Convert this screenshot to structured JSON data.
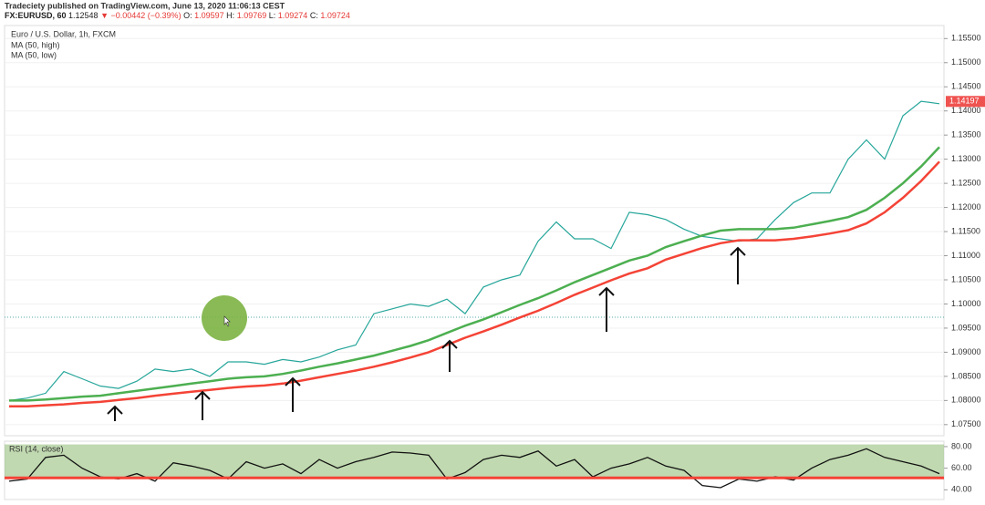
{
  "header": {
    "publisher": "Tradeciety published on TradingView.com, June 13, 2020 11:06:13 CEST",
    "symbol": [
      "FX:EURUSD, 60",
      "1.12548",
      "▼ −0.00442 (−0.39%)",
      "O:",
      "1.09597",
      "H:",
      "1.09769",
      "L:",
      "1.09274",
      "C:",
      "1.09724"
    ]
  },
  "legend": [
    "Euro / U.S. Dollar, 1h, FXCM",
    "MA (50, high)",
    "MA (50, low)"
  ],
  "chart_data": [
    {
      "type": "line",
      "ylim": [
        1.0727,
        1.1577
      ],
      "yticks": [
        {
          "value": 1.155,
          "label": "1.15500"
        },
        {
          "value": 1.15,
          "label": "1.15000"
        },
        {
          "value": 1.145,
          "label": "1.14500"
        },
        {
          "value": 1.14,
          "label": "1.14000"
        },
        {
          "value": 1.135,
          "label": "1.13500"
        },
        {
          "value": 1.13,
          "label": "1.13000"
        },
        {
          "value": 1.125,
          "label": "1.12500"
        },
        {
          "value": 1.12,
          "label": "1.12000"
        },
        {
          "value": 1.115,
          "label": "1.11500"
        },
        {
          "value": 1.11,
          "label": "1.11000"
        },
        {
          "value": 1.105,
          "label": "1.10500"
        },
        {
          "value": 1.1,
          "label": "1.10000"
        },
        {
          "value": 1.095,
          "label": "1.09500"
        },
        {
          "value": 1.09,
          "label": "1.09000"
        },
        {
          "value": 1.085,
          "label": "1.08500"
        },
        {
          "value": 1.08,
          "label": "1.08000"
        },
        {
          "value": 1.075,
          "label": "1.07500"
        }
      ],
      "last_price": 1.14197,
      "series": [
        {
          "color": "#26a69a",
          "values": [
            1.08,
            1.0805,
            1.0815,
            1.086,
            1.0845,
            1.083,
            1.0825,
            1.084,
            1.0865,
            1.086,
            1.0865,
            1.085,
            1.088,
            1.088,
            1.0875,
            1.0885,
            1.088,
            1.089,
            1.0905,
            1.0915,
            1.098,
            1.099,
            1.1,
            1.0995,
            1.101,
            1.098,
            1.1035,
            1.105,
            1.106,
            1.113,
            1.117,
            1.1135,
            1.1135,
            1.1115,
            1.119,
            1.1185,
            1.1175,
            1.1155,
            1.114,
            1.1135,
            1.113,
            1.1135,
            1.1175,
            1.121,
            1.123,
            1.123,
            1.13,
            1.134,
            1.13,
            1.139,
            1.142,
            1.1415
          ]
        },
        {
          "name": "MA (50, high)",
          "color": "#4caf50",
          "values": [
            1.08,
            1.08,
            1.0802,
            1.0805,
            1.0808,
            1.081,
            1.0815,
            1.082,
            1.0825,
            1.083,
            1.0835,
            1.084,
            1.0845,
            1.0848,
            1.085,
            1.0855,
            1.0862,
            1.087,
            1.0877,
            1.0885,
            1.0893,
            1.0903,
            1.0913,
            1.0925,
            1.094,
            1.0955,
            1.0968,
            1.0983,
            1.0998,
            1.1012,
            1.1028,
            1.1045,
            1.106,
            1.1075,
            1.109,
            1.11,
            1.1118,
            1.113,
            1.1142,
            1.1152,
            1.1155,
            1.1155,
            1.1155,
            1.1158,
            1.1165,
            1.1172,
            1.118,
            1.1195,
            1.122,
            1.125,
            1.1285,
            1.1325
          ]
        },
        {
          "name": "MA (50, low)",
          "color": "#f44336",
          "values": [
            1.0788,
            1.0788,
            1.079,
            1.0792,
            1.0795,
            1.0797,
            1.0801,
            1.0805,
            1.081,
            1.0814,
            1.0818,
            1.0822,
            1.0826,
            1.0829,
            1.0831,
            1.0835,
            1.0841,
            1.0848,
            1.0855,
            1.0862,
            1.087,
            1.0879,
            1.0889,
            1.09,
            1.0915,
            1.093,
            1.0943,
            1.0957,
            1.0972,
            1.0986,
            1.1002,
            1.1019,
            1.1034,
            1.1049,
            1.1063,
            1.1074,
            1.1092,
            1.1104,
            1.1116,
            1.1126,
            1.1132,
            1.1132,
            1.1132,
            1.1135,
            1.114,
            1.1146,
            1.1153,
            1.1167,
            1.119,
            1.122,
            1.1255,
            1.1295
          ]
        }
      ]
    },
    {
      "type": "rsi",
      "title": "RSI (14, close)",
      "ylim": [
        31,
        85
      ],
      "yticks": [
        {
          "value": 80,
          "label": "80.00"
        },
        {
          "value": 60,
          "label": "60.00"
        },
        {
          "value": 40,
          "label": "40.00"
        }
      ],
      "band": [
        51,
        82
      ],
      "band_color": "#a5c98f",
      "level": 51,
      "level_color": "#f44336",
      "color": "#111111",
      "values": [
        48,
        50,
        70,
        72,
        60,
        52,
        50,
        55,
        48,
        65,
        62,
        58,
        50,
        66,
        60,
        64,
        55,
        68,
        60,
        66,
        70,
        75,
        74,
        72,
        50,
        56,
        68,
        72,
        70,
        76,
        62,
        68,
        52,
        60,
        64,
        70,
        62,
        58,
        44,
        42,
        50,
        48,
        52,
        49,
        60,
        68,
        72,
        78,
        70,
        66,
        62,
        55
      ]
    }
  ]
}
